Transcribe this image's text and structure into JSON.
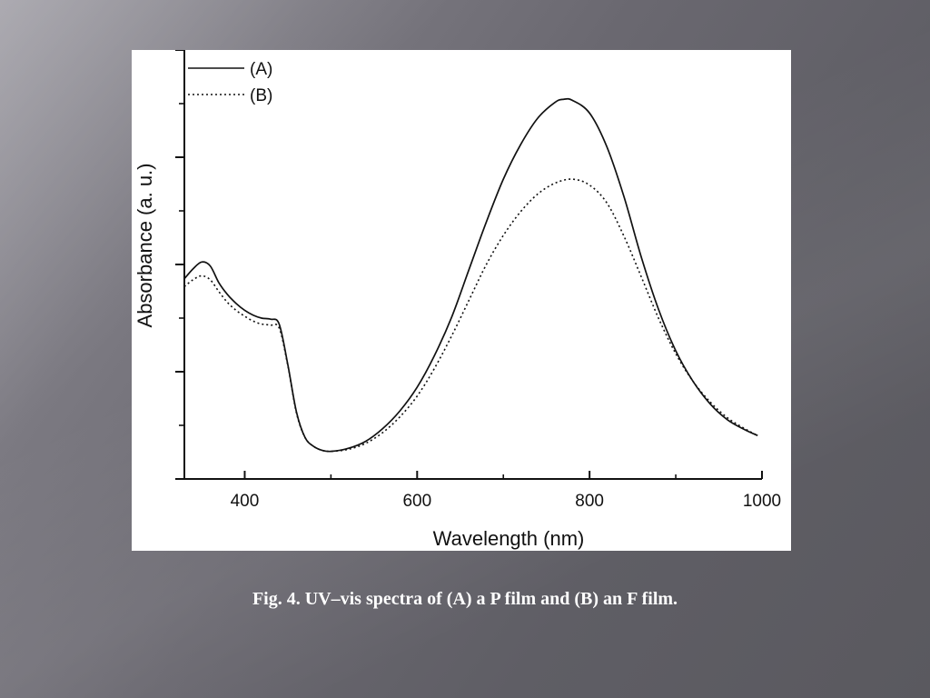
{
  "slide": {
    "caption": "Fig. 4. UV–vis spectra of (A) a P film and (B) an F film."
  },
  "chart_data": {
    "type": "line",
    "xlabel": "Wavelength (nm)",
    "ylabel": "Absorbance (a. u.)",
    "xlim": [
      330,
      1000
    ],
    "x_ticks": [
      400,
      600,
      800,
      1000
    ],
    "y_tick_labels_shown": false,
    "grid": false,
    "legend_position": "top-left",
    "series": [
      {
        "name": "(A)",
        "style": "solid",
        "points": [
          [
            330,
            2.03
          ],
          [
            340,
            2.13
          ],
          [
            350,
            2.2
          ],
          [
            360,
            2.16
          ],
          [
            370,
            1.99
          ],
          [
            380,
            1.87
          ],
          [
            390,
            1.78
          ],
          [
            400,
            1.71
          ],
          [
            410,
            1.66
          ],
          [
            420,
            1.63
          ],
          [
            430,
            1.62
          ],
          [
            440,
            1.57
          ],
          [
            450,
            1.16
          ],
          [
            460,
            0.68
          ],
          [
            470,
            0.42
          ],
          [
            480,
            0.33
          ],
          [
            490,
            0.29
          ],
          [
            500,
            0.28
          ],
          [
            520,
            0.31
          ],
          [
            540,
            0.38
          ],
          [
            560,
            0.51
          ],
          [
            580,
            0.69
          ],
          [
            600,
            0.93
          ],
          [
            620,
            1.25
          ],
          [
            640,
            1.64
          ],
          [
            660,
            2.12
          ],
          [
            680,
            2.6
          ],
          [
            700,
            3.04
          ],
          [
            720,
            3.39
          ],
          [
            740,
            3.66
          ],
          [
            760,
            3.82
          ],
          [
            770,
            3.85
          ],
          [
            780,
            3.84
          ],
          [
            800,
            3.71
          ],
          [
            820,
            3.37
          ],
          [
            840,
            2.86
          ],
          [
            860,
            2.25
          ],
          [
            880,
            1.72
          ],
          [
            900,
            1.3
          ],
          [
            920,
            0.99
          ],
          [
            940,
            0.76
          ],
          [
            960,
            0.6
          ],
          [
            980,
            0.5
          ],
          [
            995,
            0.44
          ]
        ]
      },
      {
        "name": "(B)",
        "style": "dotted",
        "points": [
          [
            330,
            1.95
          ],
          [
            340,
            2.02
          ],
          [
            350,
            2.06
          ],
          [
            360,
            2.02
          ],
          [
            370,
            1.9
          ],
          [
            380,
            1.79
          ],
          [
            390,
            1.71
          ],
          [
            400,
            1.65
          ],
          [
            410,
            1.6
          ],
          [
            420,
            1.57
          ],
          [
            430,
            1.56
          ],
          [
            440,
            1.53
          ],
          [
            450,
            1.15
          ],
          [
            460,
            0.67
          ],
          [
            470,
            0.42
          ],
          [
            480,
            0.33
          ],
          [
            490,
            0.29
          ],
          [
            500,
            0.28
          ],
          [
            520,
            0.3
          ],
          [
            540,
            0.36
          ],
          [
            560,
            0.47
          ],
          [
            580,
            0.63
          ],
          [
            600,
            0.84
          ],
          [
            620,
            1.12
          ],
          [
            640,
            1.45
          ],
          [
            660,
            1.81
          ],
          [
            680,
            2.17
          ],
          [
            700,
            2.47
          ],
          [
            720,
            2.71
          ],
          [
            740,
            2.89
          ],
          [
            760,
            3.0
          ],
          [
            780,
            3.04
          ],
          [
            800,
            2.98
          ],
          [
            820,
            2.8
          ],
          [
            840,
            2.46
          ],
          [
            860,
            2.05
          ],
          [
            880,
            1.63
          ],
          [
            900,
            1.27
          ],
          [
            920,
            0.99
          ],
          [
            940,
            0.78
          ],
          [
            960,
            0.62
          ],
          [
            980,
            0.51
          ],
          [
            995,
            0.44
          ]
        ]
      }
    ]
  }
}
